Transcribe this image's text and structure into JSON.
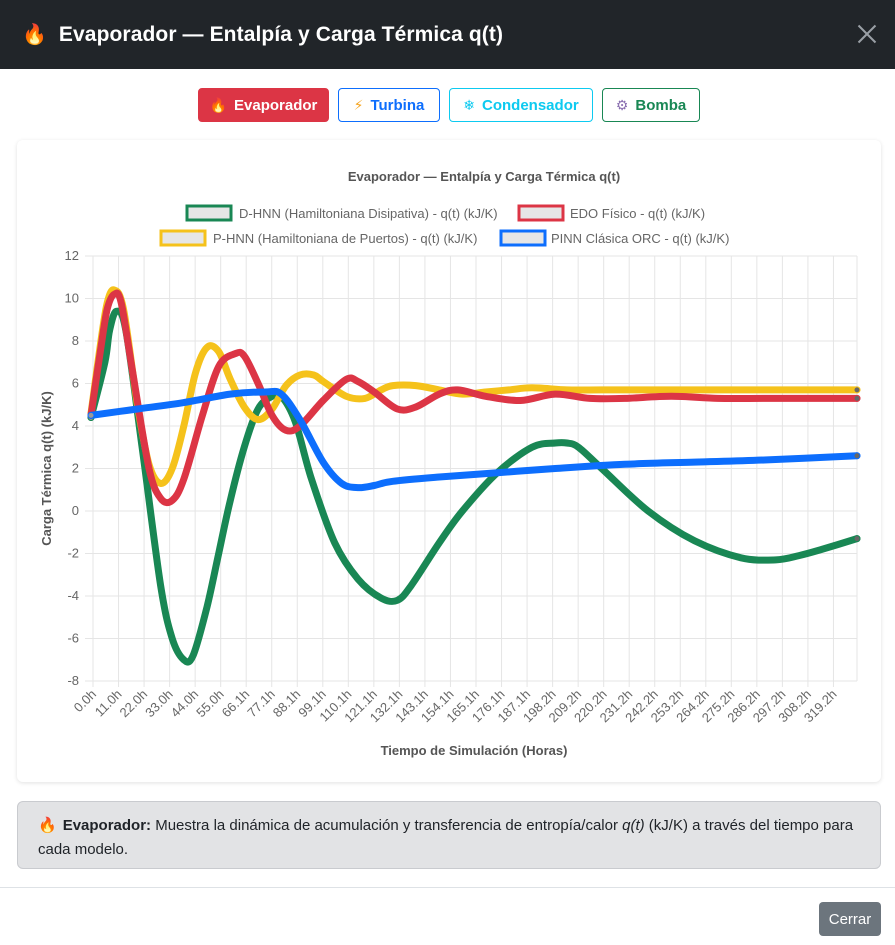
{
  "modal": {
    "title": "Evaporador — Entalpía y Carga Térmica q(t)",
    "title_icon": "flame-icon",
    "close_icon": "close-icon"
  },
  "tabs": [
    {
      "label": "Evaporador",
      "icon": "flame-icon",
      "active": true,
      "color": "#dc3545"
    },
    {
      "label": "Turbina",
      "icon": "lightning-icon",
      "active": false,
      "color": "#0d6efd"
    },
    {
      "label": "Condensador",
      "icon": "snowflake-icon",
      "active": false,
      "color": "#0dcaf0"
    },
    {
      "label": "Bomba",
      "icon": "gear-icon",
      "active": false,
      "color": "#198754"
    }
  ],
  "info": {
    "bold_label": "Evaporador:",
    "text_before": " Muestra la dinámica de acumulación y transferencia de entropía/calor ",
    "italic": "q(t)",
    "text_after": " (kJ/K) a través del tiempo para cada modelo."
  },
  "footer": {
    "close_label": "Cerrar"
  },
  "chart_data": {
    "type": "line",
    "title": "Evaporador — Entalpía y Carga Térmica q(t)",
    "xlabel": "Tiempo de Simulación (Horas)",
    "ylabel": "Carga Térmica q(t) (kJ/K)",
    "ylim": [
      -8,
      12
    ],
    "yticks": [
      -8,
      -6,
      -4,
      -2,
      0,
      2,
      4,
      6,
      8,
      10,
      12
    ],
    "xlim": [
      0,
      330
    ],
    "xticks": [
      "0.0h",
      "11.0h",
      "22.0h",
      "33.0h",
      "44.0h",
      "55.0h",
      "66.1h",
      "77.1h",
      "88.1h",
      "99.1h",
      "110.1h",
      "121.1h",
      "132.1h",
      "143.1h",
      "154.1h",
      "165.1h",
      "176.1h",
      "187.1h",
      "198.2h",
      "209.2h",
      "220.2h",
      "231.2h",
      "242.2h",
      "253.2h",
      "264.2h",
      "275.2h",
      "286.2h",
      "297.2h",
      "308.2h",
      "319.2h"
    ],
    "grid": true,
    "legend_position": "top",
    "series": [
      {
        "name": "D-HNN (Hamiltoniana Disipativa) - q(t) (kJ/K)",
        "color": "#198754",
        "x": [
          0,
          6,
          8,
          11,
          15,
          22,
          30,
          35,
          40,
          44,
          50,
          55,
          60,
          66,
          72,
          78,
          82,
          88,
          95,
          105,
          115,
          125,
          132,
          138,
          150,
          160,
          175,
          190,
          200,
          205,
          210,
          220,
          240,
          260,
          280,
          295,
          305,
          315,
          330
        ],
        "y": [
          4.4,
          7.0,
          8.5,
          9.4,
          8.5,
          3.0,
          -3.5,
          -6.0,
          -7.0,
          -6.8,
          -4.5,
          -2.0,
          0.5,
          3.0,
          4.8,
          5.4,
          5.4,
          4.2,
          1.5,
          -1.5,
          -3.2,
          -4.1,
          -4.2,
          -3.5,
          -1.5,
          0.0,
          1.8,
          3.0,
          3.2,
          3.2,
          3.0,
          2.0,
          0.0,
          -1.4,
          -2.2,
          -2.3,
          -2.1,
          -1.8,
          -1.3
        ]
      },
      {
        "name": "EDO Físico - q(t) (kJ/K)",
        "color": "#dc3545",
        "x": [
          0,
          4,
          7,
          10,
          13,
          18,
          25,
          30,
          35,
          40,
          48,
          55,
          62,
          66,
          72,
          78,
          84,
          90,
          100,
          110,
          115,
          122,
          132,
          140,
          150,
          158,
          170,
          185,
          200,
          215,
          230,
          250,
          270,
          290,
          310,
          330
        ],
        "y": [
          4.5,
          7.5,
          9.5,
          10.2,
          9.8,
          6.5,
          2.0,
          0.6,
          0.5,
          1.5,
          4.5,
          6.8,
          7.4,
          7.3,
          6.0,
          4.5,
          3.8,
          4.0,
          5.2,
          6.2,
          6.1,
          5.6,
          4.8,
          4.9,
          5.5,
          5.7,
          5.4,
          5.2,
          5.5,
          5.3,
          5.3,
          5.4,
          5.3,
          5.3,
          5.3,
          5.3
        ]
      },
      {
        "name": "P-HNN (Hamiltoniana de Puertos) - q(t) (kJ/K)",
        "color": "#f5c21b",
        "x": [
          0,
          4,
          7,
          10,
          14,
          20,
          25,
          30,
          35,
          40,
          45,
          50,
          55,
          60,
          66,
          72,
          78,
          84,
          90,
          96,
          100,
          110,
          118,
          125,
          130,
          140,
          150,
          160,
          170,
          180,
          190,
          205,
          220,
          240,
          260,
          280,
          300,
          330
        ],
        "y": [
          4.6,
          7.8,
          9.8,
          10.4,
          9.5,
          5.0,
          2.2,
          1.3,
          2.0,
          4.0,
          6.5,
          7.7,
          7.5,
          6.2,
          4.9,
          4.3,
          4.8,
          5.9,
          6.4,
          6.4,
          6.1,
          5.4,
          5.3,
          5.7,
          5.9,
          5.9,
          5.7,
          5.5,
          5.6,
          5.7,
          5.8,
          5.7,
          5.7,
          5.7,
          5.7,
          5.7,
          5.7,
          5.7
        ]
      },
      {
        "name": "PINN Clásica ORC - q(t) (kJ/K)",
        "color": "#0d6efd",
        "x": [
          0,
          20,
          40,
          60,
          75,
          82,
          90,
          100,
          108,
          115,
          122,
          130,
          150,
          175,
          200,
          230,
          260,
          290,
          330
        ],
        "y": [
          4.5,
          4.8,
          5.1,
          5.5,
          5.6,
          5.5,
          4.3,
          2.3,
          1.3,
          1.1,
          1.2,
          1.4,
          1.6,
          1.8,
          2.0,
          2.2,
          2.3,
          2.4,
          2.6
        ]
      }
    ]
  }
}
